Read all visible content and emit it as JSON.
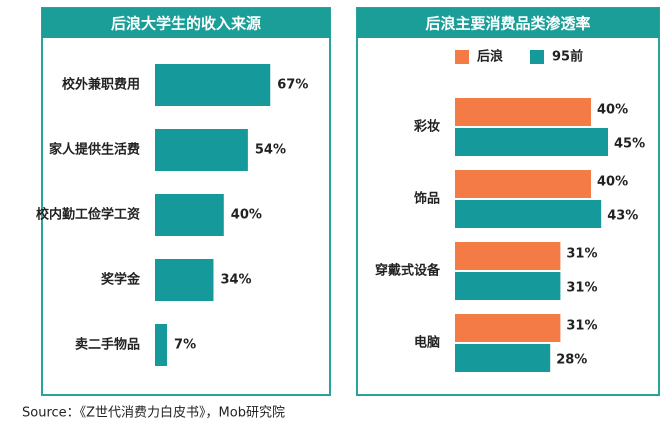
{
  "chart_data": [
    {
      "type": "bar",
      "orientation": "horizontal",
      "title": "后浪大学生的收入来源",
      "categories": [
        "校外兼职费用",
        "家人提供生活费",
        "校内勤工俭学工资",
        "奖学金",
        "卖二手物品"
      ],
      "values": [
        67,
        54,
        40,
        34,
        7
      ],
      "value_labels": [
        "67%",
        "54%",
        "40%",
        "34%",
        "7%"
      ],
      "color": "#16999a"
    },
    {
      "type": "bar",
      "orientation": "horizontal",
      "title": "后浪主要消费品类渗透率",
      "categories": [
        "彩妆",
        "饰品",
        "穿戴式设备",
        "电脑"
      ],
      "series": [
        {
          "name": "后浪",
          "color": "#f47b45",
          "values": [
            40,
            40,
            31,
            31
          ],
          "value_labels": [
            "40%",
            "40%",
            "31%",
            "31%"
          ]
        },
        {
          "name": "95前",
          "color": "#16999a",
          "values": [
            45,
            43,
            31,
            28
          ],
          "value_labels": [
            "45%",
            "43%",
            "31%",
            "28%"
          ]
        }
      ],
      "legend": "top"
    }
  ],
  "source": "Source：《Z世代消费力白皮书》，Mob研究院"
}
